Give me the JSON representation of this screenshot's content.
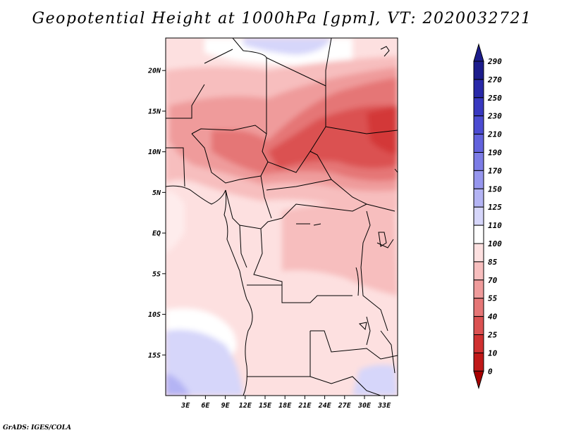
{
  "title": "Geopotential Height at 1000hPa [gpm], VT: 2020032721",
  "credit": "GrADS: IGES/COLA",
  "map": {
    "lat_range": [
      -20,
      24
    ],
    "lon_range": [
      0,
      35
    ],
    "lat_ticks": [
      {
        "label": "20N",
        "value": 20
      },
      {
        "label": "15N",
        "value": 15
      },
      {
        "label": "10N",
        "value": 10
      },
      {
        "label": "5N",
        "value": 5
      },
      {
        "label": "EQ",
        "value": 0
      },
      {
        "label": "5S",
        "value": -5
      },
      {
        "label": "10S",
        "value": -10
      },
      {
        "label": "15S",
        "value": -15
      }
    ],
    "lon_ticks": [
      {
        "label": "3E",
        "value": 3
      },
      {
        "label": "6E",
        "value": 6
      },
      {
        "label": "9E",
        "value": 9
      },
      {
        "label": "12E",
        "value": 12
      },
      {
        "label": "15E",
        "value": 15
      },
      {
        "label": "18E",
        "value": 18
      },
      {
        "label": "21E",
        "value": 21
      },
      {
        "label": "24E",
        "value": 24
      },
      {
        "label": "27E",
        "value": 27
      },
      {
        "label": "30E",
        "value": 30
      },
      {
        "label": "33E",
        "value": 33
      }
    ]
  },
  "colorbar": {
    "levels": [
      "290",
      "270",
      "250",
      "230",
      "210",
      "190",
      "170",
      "150",
      "125",
      "110",
      "100",
      "85",
      "70",
      "55",
      "40",
      "25",
      "10",
      "0"
    ],
    "colors": [
      "#1c1c8c",
      "#2828a8",
      "#3838c0",
      "#4b4bd2",
      "#6262dd",
      "#7c7ce6",
      "#9696ee",
      "#b4b4f4",
      "#d6d6fa",
      "#ffffff",
      "#fde0e0",
      "#f7bebe",
      "#ef9b9b",
      "#e57676",
      "#db5151",
      "#d03030",
      "#c01818",
      "#a80000"
    ]
  }
}
